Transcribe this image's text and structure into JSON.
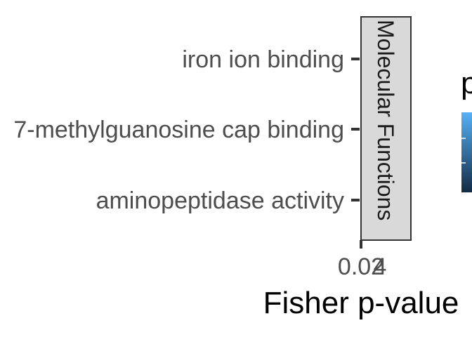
{
  "chart_data": {
    "type": "bar",
    "orientation": "horizontal",
    "categories": [
      "iron ion binding",
      "7-methylguanosine cap binding",
      "aminopeptidase activity"
    ],
    "values": [
      0.02,
      0.02,
      0.02
    ],
    "x_tick_labels": [
      "0.02",
      "4"
    ],
    "xlabel": "Fisher p-value",
    "ylabel": "",
    "facet_label": "Molecular Functions",
    "legend": {
      "title": "p",
      "type": "colorbar",
      "position": "right",
      "colors": [
        "#56B1F7",
        "#132B43"
      ]
    },
    "grid": false
  }
}
